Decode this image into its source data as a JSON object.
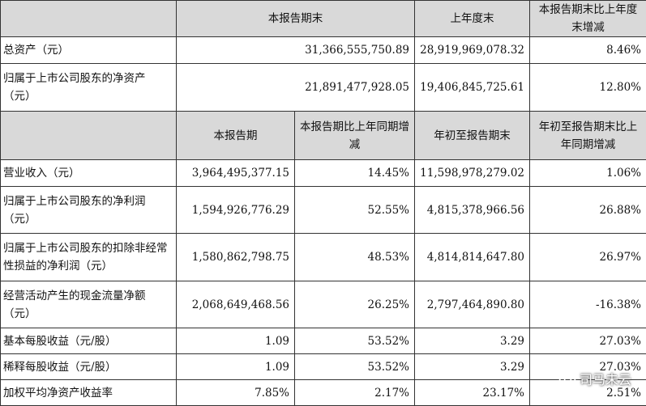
{
  "section1": {
    "headers": [
      "",
      "本报告期末",
      "上年度末",
      "本报告期末比上年度末增减"
    ],
    "rows": [
      {
        "label": "总资产（元）",
        "values": [
          "31,366,555,750.89",
          "28,919,969,078.32",
          "8.46%"
        ]
      },
      {
        "label": "归属于上市公司股东的净资产（元）",
        "values": [
          "21,891,477,928.05",
          "19,406,845,725.61",
          "12.80%"
        ]
      }
    ]
  },
  "section2": {
    "headers": [
      "",
      "本报告期",
      "本报告期比上年同期增减",
      "年初至报告期末",
      "年初至报告期末比上年同期增减"
    ],
    "rows": [
      {
        "label": "营业收入（元）",
        "values": [
          "3,964,495,377.15",
          "14.45%",
          "11,598,978,279.02",
          "1.06%"
        ]
      },
      {
        "label": "归属于上市公司股东的净利润（元）",
        "values": [
          "1,594,926,776.29",
          "52.55%",
          "4,815,378,966.56",
          "26.88%"
        ]
      },
      {
        "label": "归属于上市公司股东的扣除非经常性损益的净利润（元）",
        "values": [
          "1,580,862,798.75",
          "48.53%",
          "4,814,814,647.80",
          "26.97%"
        ]
      },
      {
        "label": "经营活动产生的现金流量净额（元）",
        "values": [
          "2,068,649,468.56",
          "26.25%",
          "2,797,464,890.80",
          "-16.38%"
        ]
      },
      {
        "label": "基本每股收益（元/股）",
        "values": [
          "1.09",
          "53.52%",
          "3.29",
          "27.03%"
        ]
      },
      {
        "label": "稀释每股收益（元/股）",
        "values": [
          "1.09",
          "53.52%",
          "3.29",
          "27.03%"
        ]
      },
      {
        "label": "加权平均净资产收益率",
        "values": [
          "7.85%",
          "2.17%",
          "23.17%",
          "2.51%"
        ]
      }
    ]
  },
  "watermark": {
    "text": "司马未云",
    "icon": "wechat-icon"
  }
}
